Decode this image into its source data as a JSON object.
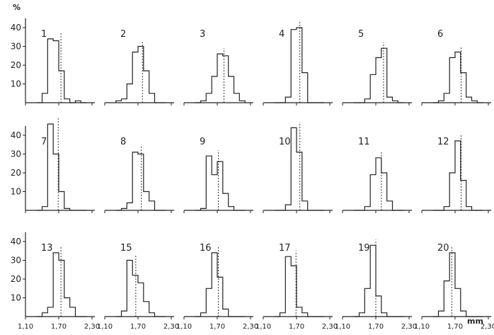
{
  "chart_data": {
    "type": "bar",
    "y_unit_label": "%",
    "x_unit_label": "mm",
    "y_ticks": [
      10,
      20,
      30,
      40
    ],
    "ylim": [
      0,
      45
    ],
    "x_ticks": [
      1.1,
      1.7,
      2.3
    ],
    "x_tick_labels": [
      "1,10",
      "1,70",
      "2,30"
    ],
    "xlim": [
      1.1,
      2.3
    ],
    "bin_start": 1.3,
    "bin_width": 0.1,
    "panels": [
      {
        "label": "1",
        "values": [
          0,
          5,
          34,
          33,
          17,
          2,
          0,
          1,
          0
        ],
        "mean": 1.74
      },
      {
        "label": "2",
        "values": [
          1,
          2,
          10,
          27,
          30,
          17,
          5,
          0,
          0
        ],
        "mean": 1.78
      },
      {
        "label": "3",
        "values": [
          0,
          1,
          5,
          14,
          26,
          25,
          14,
          5,
          1
        ],
        "mean": 1.82
      },
      {
        "label": "4",
        "values": [
          0,
          0,
          3,
          39,
          40,
          16,
          0,
          0,
          0
        ],
        "mean": 1.76
      },
      {
        "label": "5",
        "values": [
          0,
          0,
          2,
          15,
          24,
          29,
          3,
          1,
          0
        ],
        "mean": 1.84
      },
      {
        "label": "6",
        "values": [
          0,
          1,
          5,
          24,
          27,
          16,
          3,
          1,
          0
        ],
        "mean": 1.81
      },
      {
        "label": "7",
        "values": [
          0,
          2,
          46,
          30,
          10,
          1,
          0,
          0,
          0
        ],
        "mean": 1.69
      },
      {
        "label": "8",
        "values": [
          0,
          1,
          4,
          31,
          30,
          10,
          5,
          0,
          0
        ],
        "mean": 1.76
      },
      {
        "label": "9",
        "values": [
          0,
          1,
          29,
          19,
          26,
          9,
          2,
          0,
          0
        ],
        "mean": 1.72
      },
      {
        "label": "10",
        "values": [
          0,
          0,
          3,
          44,
          31,
          5,
          0,
          0,
          0
        ],
        "mean": 1.76
      },
      {
        "label": "11",
        "values": [
          0,
          0,
          2,
          19,
          28,
          20,
          5,
          0,
          0
        ],
        "mean": 1.8
      },
      {
        "label": "12",
        "values": [
          0,
          0,
          2,
          20,
          37,
          16,
          2,
          0,
          0
        ],
        "mean": 1.81
      },
      {
        "label": "13",
        "values": [
          0,
          2,
          5,
          34,
          30,
          10,
          5,
          0,
          0
        ],
        "mean": 1.74
      },
      {
        "label": "15",
        "values": [
          0,
          3,
          30,
          22,
          18,
          8,
          2,
          0,
          0
        ],
        "mean": 1.66
      },
      {
        "label": "16",
        "values": [
          0,
          2,
          15,
          34,
          21,
          4,
          0,
          0,
          0
        ],
        "mean": 1.72
      },
      {
        "label": "17",
        "values": [
          0,
          2,
          32,
          27,
          5,
          2,
          0,
          0,
          0
        ],
        "mean": 1.69
      },
      {
        "label": "19",
        "values": [
          0,
          2,
          15,
          38,
          11,
          2,
          0,
          0,
          0
        ],
        "mean": 1.7
      },
      {
        "label": "20",
        "values": [
          0,
          3,
          19,
          34,
          15,
          3,
          0,
          0,
          0
        ],
        "mean": 1.64
      }
    ]
  }
}
